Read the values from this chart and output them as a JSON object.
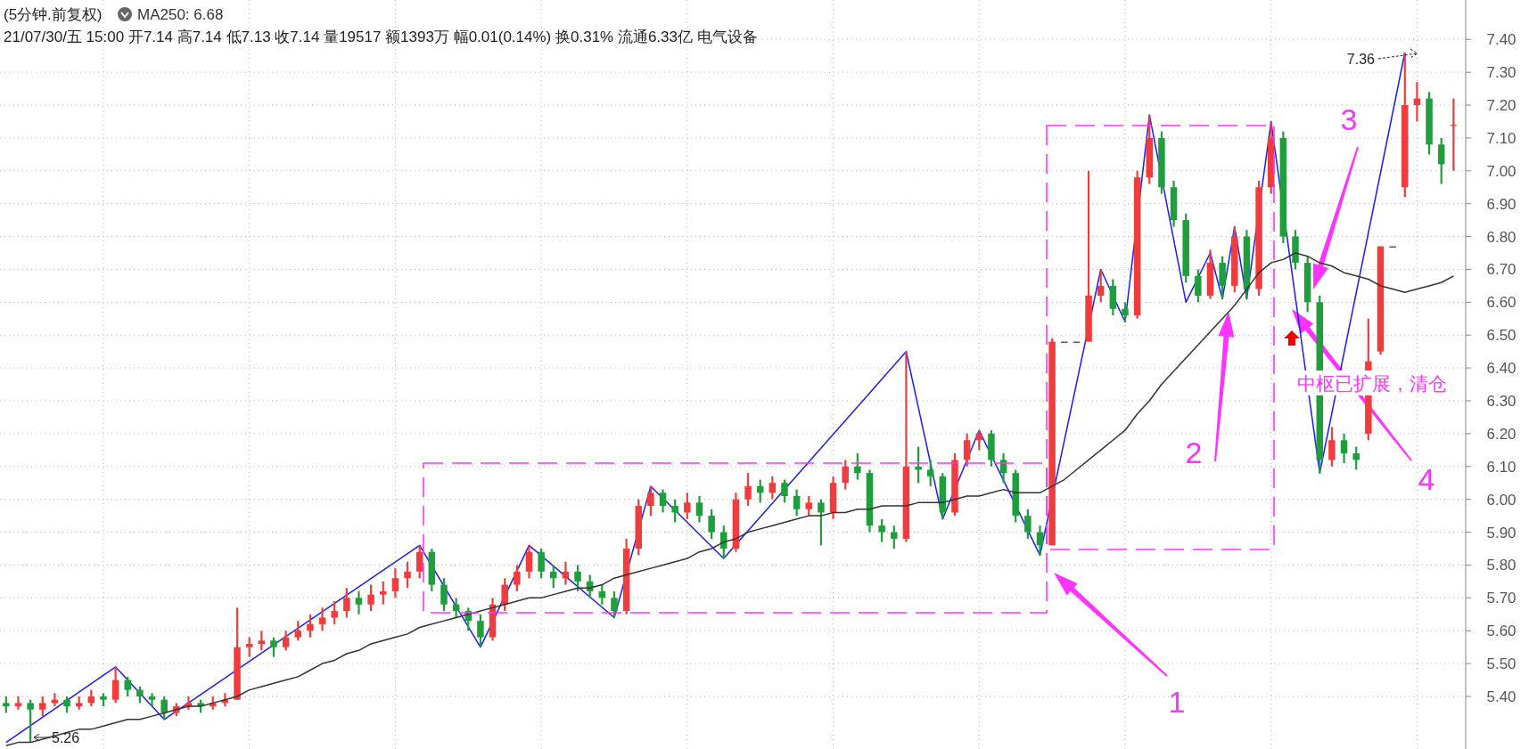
{
  "chart_data": {
    "type": "candlestick",
    "title": "(5分钟.前复权)",
    "subtitle": "21/07/30/五 15:00 开7.14 高7.14 低7.13 收7.14 量19517 额1393万 幅0.01(0.14%) 换0.31% 流通6.33亿 电气设备",
    "categories": [
      null,
      null,
      null,
      null,
      null,
      null,
      null,
      null,
      null,
      null,
      null,
      null,
      null,
      null,
      null,
      null,
      null,
      null,
      null,
      null,
      null,
      null,
      null,
      null,
      null,
      null,
      null,
      null,
      null,
      null,
      null,
      null,
      null,
      null,
      null,
      null,
      null,
      null,
      null,
      null,
      null,
      null,
      null,
      null,
      null,
      null,
      null,
      null,
      null,
      null,
      null,
      null,
      null,
      null,
      null,
      null,
      null,
      null,
      null,
      null,
      null,
      null,
      null,
      null,
      null,
      null,
      null,
      null,
      null,
      null,
      null,
      null,
      null,
      null,
      null,
      null,
      null,
      null,
      null,
      null,
      null,
      null,
      null,
      null,
      null,
      null,
      null,
      null,
      null,
      null,
      null,
      null,
      null,
      null,
      null,
      null,
      null,
      null,
      null,
      null,
      null,
      null,
      null,
      null,
      null,
      null,
      null,
      null,
      null,
      null,
      null,
      null,
      null,
      null,
      null,
      null,
      null,
      null,
      null,
      null
    ],
    "ohlc": [
      [
        5.38,
        5.4,
        5.35,
        5.37
      ],
      [
        5.37,
        5.4,
        5.36,
        5.38
      ],
      [
        5.38,
        5.39,
        5.26,
        5.36
      ],
      [
        5.36,
        5.4,
        5.34,
        5.38
      ],
      [
        5.38,
        5.41,
        5.37,
        5.39
      ],
      [
        5.39,
        5.4,
        5.35,
        5.37
      ],
      [
        5.37,
        5.4,
        5.36,
        5.38
      ],
      [
        5.38,
        5.42,
        5.37,
        5.4
      ],
      [
        5.4,
        5.41,
        5.37,
        5.39
      ],
      [
        5.39,
        5.49,
        5.38,
        5.45
      ],
      [
        5.45,
        5.46,
        5.4,
        5.42
      ],
      [
        5.42,
        5.43,
        5.38,
        5.4
      ],
      [
        5.4,
        5.41,
        5.37,
        5.39
      ],
      [
        5.39,
        5.4,
        5.33,
        5.35
      ],
      [
        5.35,
        5.38,
        5.34,
        5.37
      ],
      [
        5.37,
        5.4,
        5.36,
        5.38
      ],
      [
        5.38,
        5.39,
        5.35,
        5.37
      ],
      [
        5.37,
        5.4,
        5.36,
        5.38
      ],
      [
        5.38,
        5.41,
        5.37,
        5.39
      ],
      [
        5.39,
        5.67,
        5.39,
        5.55
      ],
      [
        5.55,
        5.58,
        5.52,
        5.56
      ],
      [
        5.56,
        5.6,
        5.54,
        5.57
      ],
      [
        5.57,
        5.58,
        5.52,
        5.55
      ],
      [
        5.55,
        5.6,
        5.54,
        5.58
      ],
      [
        5.58,
        5.63,
        5.57,
        5.6
      ],
      [
        5.6,
        5.65,
        5.58,
        5.62
      ],
      [
        5.62,
        5.67,
        5.6,
        5.64
      ],
      [
        5.64,
        5.69,
        5.62,
        5.66
      ],
      [
        5.66,
        5.73,
        5.64,
        5.7
      ],
      [
        5.7,
        5.72,
        5.65,
        5.68
      ],
      [
        5.68,
        5.74,
        5.66,
        5.71
      ],
      [
        5.71,
        5.75,
        5.68,
        5.72
      ],
      [
        5.72,
        5.79,
        5.7,
        5.76
      ],
      [
        5.76,
        5.81,
        5.73,
        5.78
      ],
      [
        5.78,
        5.86,
        5.76,
        5.84
      ],
      [
        5.84,
        5.85,
        5.72,
        5.74
      ],
      [
        5.74,
        5.76,
        5.66,
        5.68
      ],
      [
        5.68,
        5.7,
        5.64,
        5.66
      ],
      [
        5.66,
        5.67,
        5.6,
        5.63
      ],
      [
        5.63,
        5.65,
        5.55,
        5.58
      ],
      [
        5.58,
        5.7,
        5.57,
        5.68
      ],
      [
        5.68,
        5.76,
        5.66,
        5.74
      ],
      [
        5.74,
        5.8,
        5.72,
        5.78
      ],
      [
        5.78,
        5.86,
        5.76,
        5.84
      ],
      [
        5.84,
        5.85,
        5.76,
        5.78
      ],
      [
        5.78,
        5.8,
        5.73,
        5.76
      ],
      [
        5.76,
        5.81,
        5.74,
        5.78
      ],
      [
        5.78,
        5.8,
        5.72,
        5.75
      ],
      [
        5.75,
        5.77,
        5.7,
        5.72
      ],
      [
        5.72,
        5.74,
        5.68,
        5.7
      ],
      [
        5.7,
        5.72,
        5.64,
        5.66
      ],
      [
        5.66,
        5.88,
        5.65,
        5.85
      ],
      [
        5.85,
        6.0,
        5.83,
        5.98
      ],
      [
        5.98,
        6.04,
        5.95,
        6.02
      ],
      [
        6.02,
        6.03,
        5.96,
        5.98
      ],
      [
        5.98,
        6.0,
        5.93,
        5.96
      ],
      [
        5.96,
        6.02,
        5.94,
        5.99
      ],
      [
        5.99,
        6.01,
        5.93,
        5.95
      ],
      [
        5.95,
        5.97,
        5.88,
        5.9
      ],
      [
        5.9,
        5.92,
        5.82,
        5.85
      ],
      [
        5.85,
        6.02,
        5.84,
        6.0
      ],
      [
        6.0,
        6.08,
        5.98,
        6.04
      ],
      [
        6.04,
        6.06,
        5.99,
        6.02
      ],
      [
        6.02,
        6.07,
        6.0,
        6.05
      ],
      [
        6.05,
        6.06,
        5.99,
        6.01
      ],
      [
        6.01,
        6.03,
        5.95,
        5.97
      ],
      [
        5.97,
        6.01,
        5.95,
        5.99
      ],
      [
        5.99,
        6.0,
        5.86,
        5.96
      ],
      [
        5.96,
        6.07,
        5.94,
        6.05
      ],
      [
        6.05,
        6.12,
        6.03,
        6.1
      ],
      [
        6.1,
        6.14,
        6.06,
        6.08
      ],
      [
        6.08,
        6.09,
        5.9,
        5.92
      ],
      [
        5.92,
        5.94,
        5.87,
        5.9
      ],
      [
        5.9,
        5.92,
        5.85,
        5.88
      ],
      [
        5.88,
        6.45,
        5.87,
        6.1
      ],
      [
        6.1,
        6.16,
        6.05,
        6.09
      ],
      [
        6.09,
        6.12,
        6.04,
        6.07
      ],
      [
        6.07,
        6.08,
        5.94,
        5.96
      ],
      [
        5.96,
        6.14,
        5.95,
        6.12
      ],
      [
        6.12,
        6.2,
        6.1,
        6.18
      ],
      [
        6.18,
        6.21,
        6.15,
        6.2
      ],
      [
        6.2,
        6.21,
        6.1,
        6.12
      ],
      [
        6.12,
        6.14,
        6.05,
        6.08
      ],
      [
        6.08,
        6.09,
        5.93,
        5.95
      ],
      [
        5.95,
        5.97,
        5.88,
        5.9
      ],
      [
        5.9,
        5.92,
        5.83,
        5.86
      ],
      [
        5.86,
        6.49,
        5.86,
        6.48
      ],
      [
        6.48,
        6.48,
        6.48,
        6.48
      ],
      [
        6.48,
        6.48,
        6.48,
        6.48
      ],
      [
        6.48,
        7.0,
        6.48,
        6.62
      ],
      [
        6.62,
        6.7,
        6.6,
        6.65
      ],
      [
        6.65,
        6.67,
        6.56,
        6.58
      ],
      [
        6.58,
        6.6,
        6.54,
        6.56
      ],
      [
        6.56,
        7.0,
        6.55,
        6.98
      ],
      [
        6.98,
        7.17,
        6.96,
        7.1
      ],
      [
        7.1,
        7.12,
        6.93,
        6.95
      ],
      [
        6.95,
        6.97,
        6.83,
        6.85
      ],
      [
        6.85,
        6.87,
        6.66,
        6.68
      ],
      [
        6.68,
        6.7,
        6.6,
        6.62
      ],
      [
        6.62,
        6.76,
        6.61,
        6.72
      ],
      [
        6.72,
        6.74,
        6.61,
        6.65
      ],
      [
        6.65,
        6.83,
        6.63,
        6.8
      ],
      [
        6.8,
        6.82,
        6.61,
        6.64
      ],
      [
        6.64,
        6.97,
        6.62,
        6.95
      ],
      [
        6.95,
        7.15,
        6.93,
        7.1
      ],
      [
        7.1,
        7.12,
        6.78,
        6.8
      ],
      [
        6.8,
        6.82,
        6.7,
        6.72
      ],
      [
        6.72,
        6.74,
        6.57,
        6.6
      ],
      [
        6.6,
        6.62,
        6.08,
        6.12
      ],
      [
        6.12,
        6.22,
        6.1,
        6.18
      ],
      [
        6.18,
        6.2,
        6.11,
        6.14
      ],
      [
        6.14,
        6.16,
        6.09,
        6.12
      ],
      [
        6.2,
        6.55,
        6.18,
        6.42
      ],
      [
        6.45,
        6.77,
        6.44,
        6.77
      ],
      [
        6.77,
        6.77,
        6.77,
        6.77
      ],
      [
        6.95,
        7.36,
        6.92,
        7.2
      ],
      [
        7.2,
        7.27,
        7.15,
        7.22
      ],
      [
        7.22,
        7.24,
        7.05,
        7.08
      ],
      [
        7.08,
        7.1,
        6.96,
        7.02
      ],
      [
        7.14,
        7.22,
        7.0,
        7.14
      ]
    ],
    "colors": [
      "#1e9e3c",
      "#f03c3c",
      "#1e9e3c",
      "#f03c3c",
      "#f03c3c",
      "#1e9e3c",
      "#f03c3c",
      "#f03c3c",
      "#1e9e3c",
      "#f03c3c",
      "#1e9e3c",
      "#1e9e3c",
      "#1e9e3c",
      "#1e9e3c",
      "#f03c3c",
      "#f03c3c",
      "#1e9e3c",
      "#f03c3c",
      "#f03c3c",
      "#f03c3c",
      "#f03c3c",
      "#f03c3c",
      "#1e9e3c",
      "#f03c3c",
      "#f03c3c",
      "#f03c3c",
      "#f03c3c",
      "#f03c3c",
      "#f03c3c",
      "#1e9e3c",
      "#f03c3c",
      "#f03c3c",
      "#f03c3c",
      "#f03c3c",
      "#f03c3c",
      "#1e9e3c",
      "#1e9e3c",
      "#1e9e3c",
      "#1e9e3c",
      "#1e9e3c",
      "#f03c3c",
      "#f03c3c",
      "#f03c3c",
      "#f03c3c",
      "#1e9e3c",
      "#1e9e3c",
      "#f03c3c",
      "#1e9e3c",
      "#1e9e3c",
      "#1e9e3c",
      "#1e9e3c",
      "#f03c3c",
      "#f03c3c",
      "#f03c3c",
      "#1e9e3c",
      "#1e9e3c",
      "#f03c3c",
      "#1e9e3c",
      "#1e9e3c",
      "#1e9e3c",
      "#f03c3c",
      "#f03c3c",
      "#1e9e3c",
      "#f03c3c",
      "#1e9e3c",
      "#1e9e3c",
      "#f03c3c",
      "#1e9e3c",
      "#f03c3c",
      "#f03c3c",
      "#1e9e3c",
      "#1e9e3c",
      "#1e9e3c",
      "#1e9e3c",
      "#f03c3c",
      "#1e9e3c",
      "#1e9e3c",
      "#1e9e3c",
      "#f03c3c",
      "#f03c3c",
      "#f03c3c",
      "#1e9e3c",
      "#1e9e3c",
      "#1e9e3c",
      "#1e9e3c",
      "#1e9e3c",
      "#f03c3c",
      "#333333",
      "#333333",
      "#f03c3c",
      "#f03c3c",
      "#1e9e3c",
      "#1e9e3c",
      "#f03c3c",
      "#f03c3c",
      "#1e9e3c",
      "#1e9e3c",
      "#1e9e3c",
      "#1e9e3c",
      "#f03c3c",
      "#1e9e3c",
      "#f03c3c",
      "#1e9e3c",
      "#f03c3c",
      "#f03c3c",
      "#1e9e3c",
      "#1e9e3c",
      "#1e9e3c",
      "#1e9e3c",
      "#f03c3c",
      "#1e9e3c",
      "#1e9e3c",
      "#f03c3c",
      "#f03c3c",
      "#333333",
      "#f03c3c",
      "#f03c3c",
      "#1e9e3c",
      "#1e9e3c",
      "#f03c3c"
    ],
    "series": [
      {
        "type": "line",
        "name": "MA250: 6.68",
        "color": "#333333",
        "values": [
          5.25,
          5.26,
          5.26,
          5.27,
          5.28,
          5.29,
          5.3,
          5.3,
          5.31,
          5.32,
          5.33,
          5.33,
          5.34,
          5.35,
          5.36,
          5.37,
          5.37,
          5.38,
          5.39,
          5.4,
          5.42,
          5.43,
          5.44,
          5.45,
          5.46,
          5.48,
          5.5,
          5.51,
          5.53,
          5.54,
          5.56,
          5.57,
          5.58,
          5.59,
          5.61,
          5.62,
          5.63,
          5.64,
          5.65,
          5.66,
          5.67,
          5.68,
          5.69,
          5.7,
          5.7,
          5.71,
          5.72,
          5.73,
          5.73,
          5.74,
          5.76,
          5.77,
          5.78,
          5.79,
          5.8,
          5.81,
          5.82,
          5.84,
          5.85,
          5.87,
          5.88,
          5.9,
          5.91,
          5.92,
          5.93,
          5.94,
          5.95,
          5.95,
          5.96,
          5.96,
          5.97,
          5.97,
          5.98,
          5.98,
          5.98,
          5.99,
          5.99,
          5.99,
          6.0,
          6.01,
          6.01,
          6.02,
          6.03,
          6.02,
          6.02,
          6.02,
          6.04,
          6.06,
          6.09,
          6.12,
          6.15,
          6.18,
          6.21,
          6.26,
          6.3,
          6.35,
          6.39,
          6.43,
          6.47,
          6.51,
          6.55,
          6.59,
          6.64,
          6.69,
          6.72,
          6.73,
          6.75,
          6.74,
          6.72,
          6.71,
          6.69,
          6.68,
          6.67,
          6.65,
          6.64,
          6.63,
          6.64,
          6.65,
          6.66,
          6.68
        ]
      },
      {
        "type": "line",
        "color": "#1a1aff",
        "values": [
          5.26,
          null,
          null,
          null,
          null,
          null,
          null,
          null,
          null,
          5.49,
          null,
          null,
          null,
          5.33,
          null,
          null,
          null,
          null,
          null,
          null,
          null,
          null,
          null,
          null,
          null,
          null,
          null,
          null,
          null,
          null,
          null,
          null,
          null,
          null,
          5.86,
          null,
          null,
          null,
          null,
          5.55,
          null,
          null,
          null,
          5.86,
          null,
          null,
          null,
          null,
          null,
          null,
          5.64,
          null,
          null,
          6.04,
          null,
          null,
          null,
          null,
          null,
          5.82,
          null,
          null,
          null,
          null,
          null,
          null,
          null,
          null,
          null,
          null,
          null,
          null,
          null,
          null,
          6.45,
          null,
          null,
          5.94,
          null,
          null,
          6.21,
          null,
          null,
          null,
          null,
          5.83,
          null,
          null,
          null,
          null,
          6.7,
          null,
          6.54,
          null,
          7.17,
          null,
          null,
          6.6,
          null,
          6.75,
          6.61,
          6.83,
          6.61,
          null,
          7.15,
          null,
          null,
          null,
          6.08,
          null,
          null,
          null,
          null,
          null,
          null,
          7.36,
          null,
          null,
          null,
          null
        ]
      }
    ],
    "annotations": [
      "1",
      "2",
      "3",
      "4",
      "中枢已扩展，清仓",
      "7.36",
      "5.26"
    ],
    "ylim": [
      5.24,
      7.52
    ],
    "yticks": [
      {
        "value": 5.4,
        "label": "5.40"
      },
      {
        "value": 5.5,
        "label": "5.50"
      },
      {
        "value": 5.6,
        "label": "5.60"
      },
      {
        "value": 5.7,
        "label": "5.70"
      },
      {
        "value": 5.8,
        "label": "5.80"
      },
      {
        "value": 5.9,
        "label": "5.90"
      },
      {
        "value": 6.0,
        "label": "6.00"
      },
      {
        "value": 6.1,
        "label": "6.10"
      },
      {
        "value": 6.2,
        "label": "6.20"
      },
      {
        "value": 6.3,
        "label": "6.30"
      },
      {
        "value": 6.4,
        "label": "6.40"
      },
      {
        "value": 6.5,
        "label": "6.50"
      },
      {
        "value": 6.6,
        "label": "6.60"
      },
      {
        "value": 6.7,
        "label": "6.70"
      },
      {
        "value": 6.8,
        "label": "6.80"
      },
      {
        "value": 6.9,
        "label": "6.90"
      },
      {
        "value": 7.0,
        "label": "7.00"
      },
      {
        "value": 7.1,
        "label": "7.10"
      },
      {
        "value": 7.2,
        "label": "7.20"
      },
      {
        "value": 7.3,
        "label": "7.30"
      },
      {
        "value": 7.4,
        "label": "7.40"
      }
    ],
    "grid": true,
    "tick_labels": "y",
    "line_style": "solid"
  }
}
